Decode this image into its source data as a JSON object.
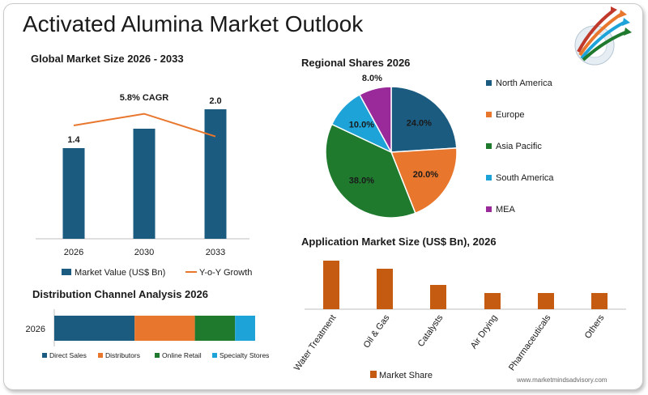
{
  "title": "Activated Alumina Market Outlook",
  "footer": "www.marketmindsadvisory.com",
  "colors": {
    "navy": "#1b5b80",
    "orange": "#e8762d",
    "green": "#1f7a2e",
    "cyan": "#1ea3d8",
    "purple": "#9a2a9a",
    "rust": "#c55a11"
  },
  "chart_data": [
    {
      "id": "market_size",
      "type": "bar",
      "title": "Global Market Size 2026 - 2033",
      "categories": [
        "2026",
        "2030",
        "2033"
      ],
      "series": [
        {
          "name": "Market Value (US$ Bn)",
          "values": [
            1.4,
            null,
            2.0
          ],
          "color": "#1b5b80"
        }
      ],
      "bar_heights_estimated": [
        1.4,
        1.7,
        2.0
      ],
      "data_labels": [
        "1.4",
        "",
        "2.0"
      ],
      "line_series": {
        "name": "Y-o-Y Growth",
        "color": "#e8762d",
        "values": [
          1.75,
          1.93,
          1.58
        ]
      },
      "annotation": "5.8% CAGR",
      "ylim": [
        0,
        2.4
      ],
      "legend": "bottom"
    },
    {
      "id": "regional",
      "type": "pie",
      "title": "Regional Shares 2026",
      "slices": [
        {
          "name": "North America",
          "value": 24.0,
          "label": "24.0%",
          "color": "#1b5b80"
        },
        {
          "name": "Europe",
          "value": 20.0,
          "label": "20.0%",
          "color": "#e8762d"
        },
        {
          "name": "Asia Pacific",
          "value": 38.0,
          "label": "38.0%",
          "color": "#1f7a2e"
        },
        {
          "name": "South America",
          "value": 10.0,
          "label": "10.0%",
          "color": "#1ea3d8"
        },
        {
          "name": "MEA",
          "value": 8.0,
          "label": "8.0%",
          "color": "#9a2a9a"
        }
      ],
      "legend": "right"
    },
    {
      "id": "distribution",
      "type": "bar",
      "title": "Distribution Channel Analysis 2026",
      "orientation": "horizontal-stacked",
      "categories": [
        "2026"
      ],
      "series": [
        {
          "name": "Direct Sales",
          "values": [
            40
          ],
          "color": "#1b5b80"
        },
        {
          "name": "Distributors",
          "values": [
            30
          ],
          "color": "#e8762d"
        },
        {
          "name": "Online Retail",
          "values": [
            20
          ],
          "color": "#1f7a2e"
        },
        {
          "name": "Specialty Stores",
          "values": [
            10
          ],
          "color": "#1ea3d8"
        }
      ],
      "legend": "bottom"
    },
    {
      "id": "application",
      "type": "bar",
      "title": "Application Market Size (US$ Bn), 2026",
      "categories": [
        "Water Treatment",
        "Oil & Gas",
        "Catalysts",
        "Air Drying",
        "Pharmaceuticals",
        "Others"
      ],
      "series": [
        {
          "name": "Market Share",
          "values": [
            0.6,
            0.5,
            0.3,
            0.2,
            0.2,
            0.2
          ],
          "color": "#c55a11"
        }
      ],
      "ylim": [
        0,
        0.7
      ],
      "legend": "bottom"
    }
  ]
}
